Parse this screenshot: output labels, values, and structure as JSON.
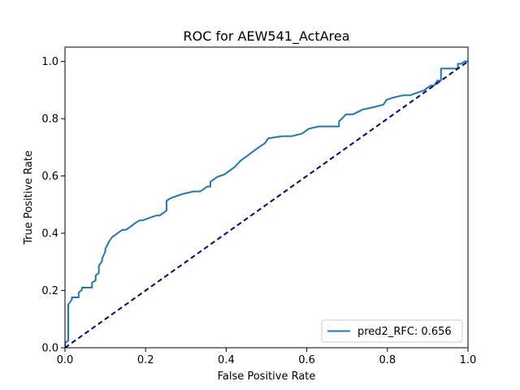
{
  "chart_data": {
    "type": "line",
    "title": "ROC for AEW541_ActArea",
    "xlabel": "False Positive Rate",
    "ylabel": "True Positive Rate",
    "xlim": [
      0.0,
      1.0
    ],
    "ylim": [
      0.0,
      1.05
    ],
    "xticks": [
      "0.0",
      "0.2",
      "0.4",
      "0.6",
      "0.8",
      "1.0"
    ],
    "yticks": [
      "0.0",
      "0.2",
      "0.4",
      "0.6",
      "0.8",
      "1.0"
    ],
    "grid": false,
    "legend": {
      "location": "lower-right",
      "entries": [
        "pred2_RFC: 0.656"
      ]
    },
    "series": [
      {
        "name": "pred2_RFC: 0.656",
        "color": "#1f77b4",
        "x": [
          0.0,
          0.0,
          0.008,
          0.008,
          0.017,
          0.017,
          0.034,
          0.034,
          0.042,
          0.042,
          0.067,
          0.067,
          0.076,
          0.076,
          0.084,
          0.084,
          0.092,
          0.092,
          0.1,
          0.1,
          0.109,
          0.117,
          0.126,
          0.134,
          0.143,
          0.151,
          0.16,
          0.168,
          0.176,
          0.185,
          0.193,
          0.21,
          0.227,
          0.235,
          0.252,
          0.252,
          0.26,
          0.277,
          0.294,
          0.319,
          0.336,
          0.353,
          0.361,
          0.361,
          0.378,
          0.395,
          0.42,
          0.437,
          0.454,
          0.47,
          0.487,
          0.496,
          0.504,
          0.538,
          0.563,
          0.588,
          0.605,
          0.63,
          0.647,
          0.664,
          0.68,
          0.68,
          0.697,
          0.714,
          0.739,
          0.765,
          0.79,
          0.798,
          0.815,
          0.84,
          0.857,
          0.874,
          0.891,
          0.899,
          0.908,
          0.916,
          0.924,
          0.933,
          0.933,
          0.95,
          0.966,
          0.975,
          0.975,
          0.983,
          0.992,
          1.0
        ],
        "y": [
          0.0,
          0.017,
          0.025,
          0.151,
          0.168,
          0.176,
          0.176,
          0.193,
          0.202,
          0.21,
          0.21,
          0.227,
          0.235,
          0.252,
          0.261,
          0.286,
          0.303,
          0.311,
          0.336,
          0.345,
          0.37,
          0.387,
          0.395,
          0.404,
          0.412,
          0.412,
          0.42,
          0.429,
          0.437,
          0.445,
          0.445,
          0.454,
          0.462,
          0.462,
          0.479,
          0.513,
          0.521,
          0.53,
          0.538,
          0.546,
          0.546,
          0.563,
          0.563,
          0.58,
          0.597,
          0.605,
          0.63,
          0.655,
          0.672,
          0.689,
          0.706,
          0.714,
          0.731,
          0.739,
          0.739,
          0.748,
          0.765,
          0.773,
          0.773,
          0.773,
          0.773,
          0.79,
          0.815,
          0.815,
          0.832,
          0.84,
          0.849,
          0.866,
          0.874,
          0.882,
          0.882,
          0.891,
          0.899,
          0.908,
          0.916,
          0.916,
          0.933,
          0.933,
          0.975,
          0.975,
          0.975,
          0.975,
          0.992,
          0.992,
          1.0,
          1.0
        ]
      },
      {
        "name": "chance",
        "color": "#000080",
        "style": "dashed",
        "x": [
          0.0,
          1.0
        ],
        "y": [
          0.0,
          1.0
        ]
      }
    ]
  }
}
